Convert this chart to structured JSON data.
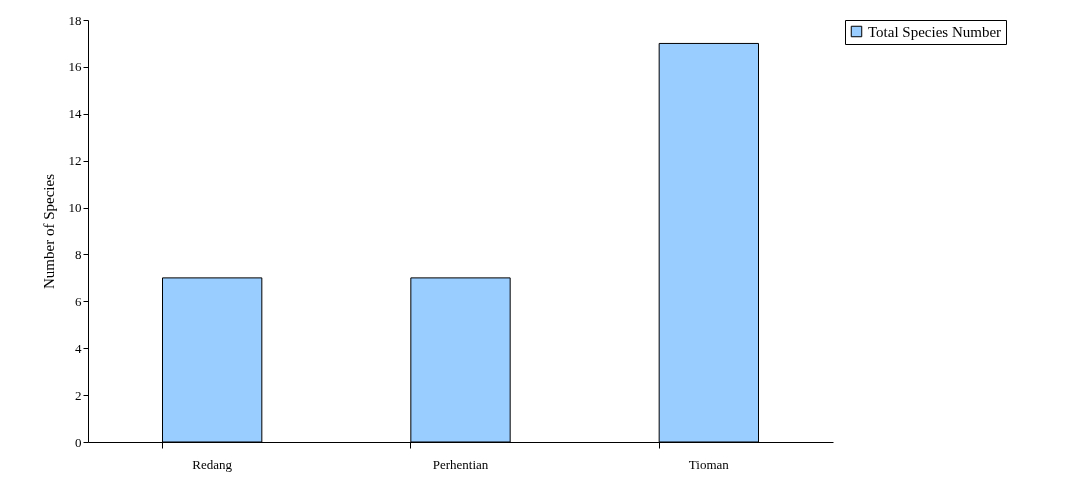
{
  "chart_data": {
    "type": "bar",
    "ylabel": "Number of Species",
    "categories": [
      "Redang",
      "Perhentian",
      "Tioman"
    ],
    "series": [
      {
        "name": "Total Species Number",
        "color": "#99ccff",
        "values": [
          7,
          7,
          17
        ]
      }
    ],
    "ylim": [
      0,
      18
    ],
    "yticks": [
      0,
      2,
      4,
      6,
      8,
      10,
      12,
      14,
      16,
      18
    ],
    "grid": false,
    "legend": "right"
  }
}
